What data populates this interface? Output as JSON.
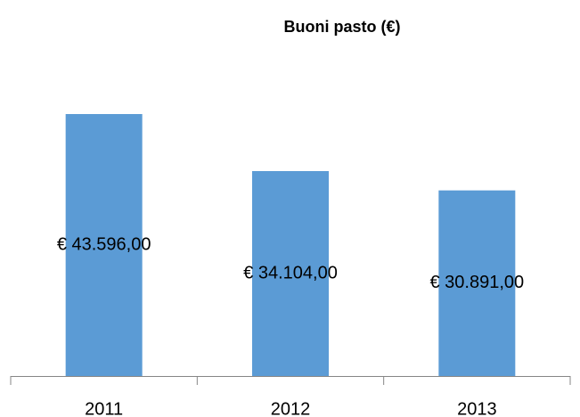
{
  "chart_data": {
    "type": "bar",
    "title": "Buoni pasto (€)",
    "categories": [
      "2011",
      "2012",
      "2013"
    ],
    "values": [
      43596,
      34104,
      30891
    ],
    "value_labels": [
      "€ 43.596,00",
      "€ 34.104,00",
      "€ 30.891,00"
    ],
    "color": "#5b9bd5"
  }
}
